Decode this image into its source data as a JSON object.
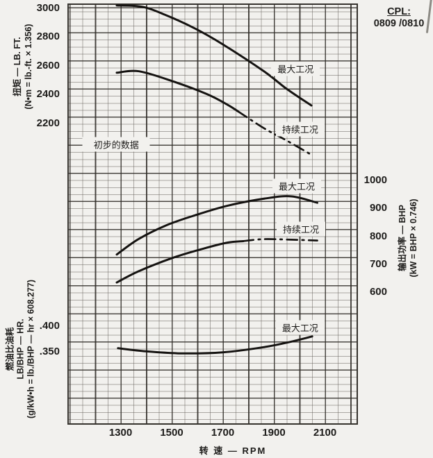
{
  "colors": {
    "paper": "#f2f1ee",
    "ink": "#1d1c1a",
    "grid_major": "#2d2a25",
    "grid_minor": "#625e57",
    "curve": "#151311"
  },
  "header": {
    "cpl_label": "CPL:",
    "cpl_value": "0809 /0810"
  },
  "x_axis": {
    "title": "转  速 — RPM",
    "ticks": [
      1300,
      1500,
      1700,
      1900,
      2100
    ],
    "range": [
      1100,
      2230
    ]
  },
  "chart_data": [
    {
      "type": "line",
      "id": "torque",
      "ylabel_lines": [
        "扭矩 — LB. FT.",
        "(N•m = lb.-ft.  ×  1.356)"
      ],
      "yticks": [
        3000,
        2800,
        2600,
        2400,
        2200
      ],
      "ylim": [
        1900,
        3060
      ],
      "grid": true,
      "series": [
        {
          "key": "max",
          "name": "最大工况",
          "style": "solid",
          "points": [
            [
              1285,
              3020
            ],
            [
              1386,
              3010
            ],
            [
              1481,
              2950
            ],
            [
              1590,
              2861
            ],
            [
              1699,
              2751
            ],
            [
              1862,
              2561
            ],
            [
              1950,
              2440
            ],
            [
              2047,
              2324
            ]
          ]
        },
        {
          "key": "continuous",
          "name": "持续工况",
          "style": "dashdot",
          "solid_until_rpm": 1755,
          "points": [
            [
              1285,
              2552
            ],
            [
              1372,
              2562
            ],
            [
              1508,
              2490
            ],
            [
              1639,
              2402
            ],
            [
              1718,
              2330
            ],
            [
              1760,
              2283
            ],
            [
              1862,
              2165
            ],
            [
              1952,
              2078
            ],
            [
              2047,
              1981
            ]
          ]
        }
      ],
      "annotations": [
        {
          "key": "max-condition-label",
          "text": "最大工况",
          "rpm": 1985,
          "value": 2580
        },
        {
          "key": "continuous-condition-label",
          "text": "持续工况",
          "rpm": 2003,
          "value": 2160
        },
        {
          "key": "preliminary-data-label",
          "text": "初步的数据",
          "rpm": 1283,
          "value": 2055,
          "wide": true
        }
      ]
    },
    {
      "type": "line",
      "id": "power",
      "ylabel_lines": [
        "输出功率 — BHP",
        "(kW = BHP  ×  0.746)"
      ],
      "yticks": [
        1000,
        900,
        800,
        700,
        600
      ],
      "ylim": [
        560,
        1030
      ],
      "grid": true,
      "series": [
        {
          "key": "max",
          "name": "最大工况",
          "style": "solid",
          "points": [
            [
              1285,
              735
            ],
            [
              1370,
              790
            ],
            [
              1480,
              840
            ],
            [
              1590,
              875
            ],
            [
              1720,
              910
            ],
            [
              1870,
              936
            ],
            [
              1970,
              943
            ],
            [
              2070,
              920
            ]
          ]
        },
        {
          "key": "continuous",
          "name": "持续工况",
          "style": "dashdot",
          "solid_until_rpm": 1770,
          "points": [
            [
              1285,
              635
            ],
            [
              1370,
              675
            ],
            [
              1510,
              725
            ],
            [
              1640,
              760
            ],
            [
              1720,
              778
            ],
            [
              1780,
              783
            ],
            [
              1860,
              790
            ],
            [
              1970,
              788
            ],
            [
              2070,
              785
            ]
          ]
        }
      ],
      "annotations": [
        {
          "key": "max-condition-label",
          "text": "最大工况",
          "rpm": 1990,
          "value": 980
        },
        {
          "key": "continuous-condition-label",
          "text": "持续工况",
          "rpm": 2006,
          "value": 826
        }
      ]
    },
    {
      "type": "line",
      "id": "fuel",
      "ylabel_lines": [
        "燃油比油耗",
        "LB/BHP — HR.",
        "(g/kW•h = lb./BHP — hr × 608.277)"
      ],
      "yticks": [
        0.4,
        0.35
      ],
      "ytick_labels": [
        ".400",
        ".350"
      ],
      "ylim": [
        0.31,
        0.43
      ],
      "grid": true,
      "series": [
        {
          "key": "max",
          "name": "最大工况",
          "style": "solid",
          "points": [
            [
              1290,
              0.357
            ],
            [
              1400,
              0.351
            ],
            [
              1535,
              0.347
            ],
            [
              1700,
              0.349
            ],
            [
              1860,
              0.359
            ],
            [
              1970,
              0.37
            ],
            [
              2050,
              0.38
            ]
          ]
        }
      ],
      "annotations": [
        {
          "key": "max-condition-label",
          "text": "最大工况",
          "rpm": 2003,
          "value": 0.397
        }
      ]
    }
  ]
}
